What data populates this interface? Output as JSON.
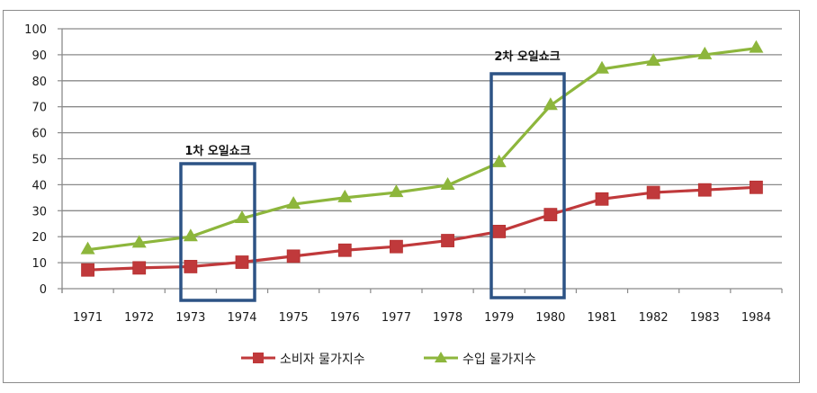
{
  "chart_data": {
    "type": "line",
    "title": "",
    "xlabel": "",
    "ylabel": "",
    "ylim": [
      0,
      100
    ],
    "yticks": [
      0,
      10,
      20,
      30,
      40,
      50,
      60,
      70,
      80,
      90,
      100
    ],
    "grid": true,
    "legend_position": "bottom",
    "categories": [
      "1971",
      "1972",
      "1973",
      "1974",
      "1975",
      "1976",
      "1977",
      "1978",
      "1979",
      "1980",
      "1981",
      "1982",
      "1983",
      "1984"
    ],
    "series": [
      {
        "name": "소비자 물가지수",
        "color": "#c0393b",
        "marker": "square",
        "values": [
          7.2,
          8.0,
          8.5,
          10.2,
          12.5,
          14.8,
          16.2,
          18.5,
          22.0,
          28.5,
          34.5,
          37.0,
          38.0,
          39.0
        ]
      },
      {
        "name": "수입 물가지수",
        "color": "#8db63c",
        "marker": "triangle",
        "values": [
          15.0,
          17.5,
          20.0,
          27.0,
          32.5,
          35.0,
          37.0,
          39.8,
          48.5,
          70.5,
          84.5,
          87.5,
          90.0,
          92.5
        ]
      }
    ],
    "annotations": [
      {
        "label": "1차 오일쇼크",
        "span": [
          "1973",
          "1974"
        ],
        "box_color": "#2d5385"
      },
      {
        "label": "2차 오일쇼크",
        "span": [
          "1979",
          "1980"
        ],
        "box_color": "#2d5385"
      }
    ]
  },
  "legend": {
    "items": [
      {
        "label": "소비자 물가지수"
      },
      {
        "label": "수입 물가지수"
      }
    ]
  }
}
